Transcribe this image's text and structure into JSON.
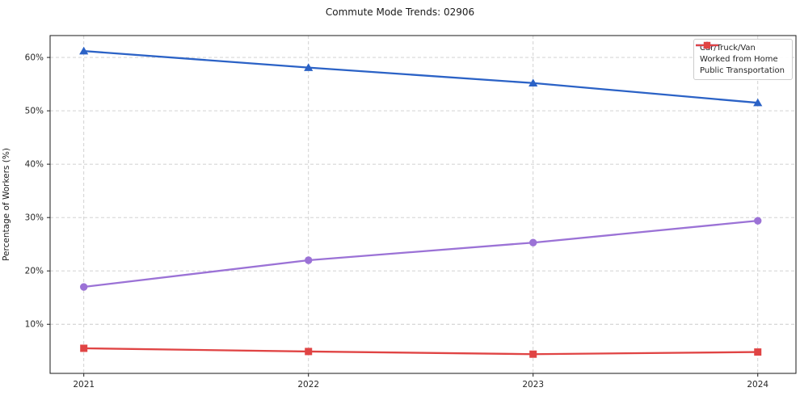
{
  "title": "Commute Mode Trends: 02906",
  "chart_data": {
    "type": "line",
    "title": "Commute Mode Trends: 02906",
    "x": [
      2021,
      2022,
      2023,
      2024
    ],
    "xticklabels": [
      "2021",
      "2022",
      "2023",
      "2024"
    ],
    "series": [
      {
        "name": "Car/Truck/Van",
        "color": "#2b62c6",
        "marker": "triangle",
        "values": [
          61.2,
          58.1,
          55.2,
          51.5
        ]
      },
      {
        "name": "Worked from Home",
        "color": "#9b72d6",
        "marker": "circle",
        "values": [
          17.0,
          22.0,
          25.3,
          29.4
        ]
      },
      {
        "name": "Public Transportation",
        "color": "#e04444",
        "marker": "square",
        "values": [
          5.5,
          4.9,
          4.4,
          4.8
        ]
      }
    ],
    "xlabel": "",
    "ylabel": "Percentage of Workers (%)",
    "yticks": [
      10,
      20,
      30,
      40,
      50,
      60
    ],
    "ytick_suffix": "%",
    "xlim": [
      2020.85,
      2024.17
    ],
    "ylim": [
      0.8,
      64.1
    ],
    "grid": true,
    "grid_style": "dashed",
    "legend_position": "top-right"
  },
  "colors": {
    "grid": "#cccccc",
    "frame": "#1a1a1a",
    "tick_text": "#262626",
    "background": "#ffffff"
  }
}
